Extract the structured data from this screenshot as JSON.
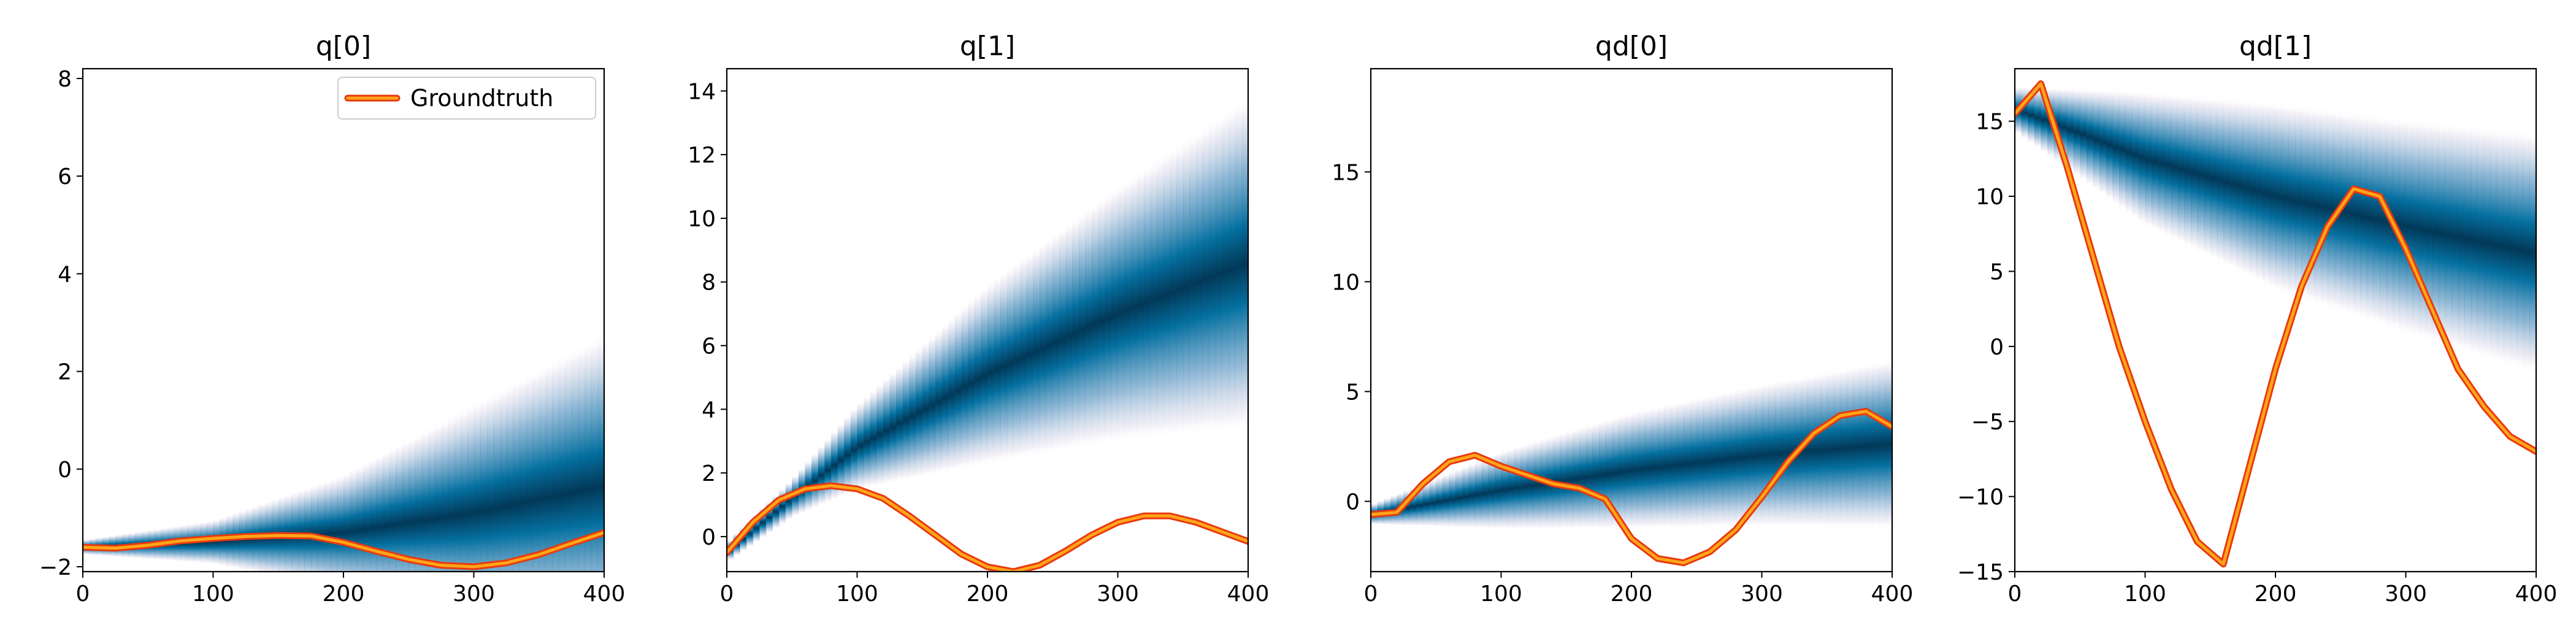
{
  "figure": {
    "legend": {
      "label": "Groundtruth",
      "placement": "upper right"
    },
    "colors": {
      "density_low": "#ffffff",
      "density_mid_low": "#e8e4f0",
      "density_mid": "#78a8cc",
      "density_high": "#0570a0",
      "density_peak": "#023858",
      "truth_edge": "#e8390e",
      "truth_fill": "#ffa51a"
    }
  },
  "chart_data": [
    {
      "type": "heatmap",
      "title": "q[0]",
      "xlim": [
        0,
        400
      ],
      "ylim": [
        -2.1,
        8.2
      ],
      "xticks": [
        0,
        100,
        200,
        300,
        400
      ],
      "yticks": [
        -2,
        0,
        2,
        4,
        6,
        8
      ],
      "legend": true,
      "density": {
        "mean": [
          [
            0,
            -1.6
          ],
          [
            100,
            -1.5
          ],
          [
            200,
            -1.3
          ],
          [
            300,
            -0.9
          ],
          [
            400,
            -0.35
          ]
        ],
        "sd": [
          [
            0,
            0.05
          ],
          [
            100,
            0.15
          ],
          [
            200,
            0.4
          ],
          [
            300,
            0.75
          ],
          [
            400,
            1.05
          ]
        ]
      },
      "groundtruth": {
        "x": [
          0,
          25,
          50,
          75,
          100,
          125,
          150,
          175,
          200,
          225,
          250,
          275,
          300,
          325,
          350,
          375,
          400
        ],
        "y": [
          -1.6,
          -1.62,
          -1.56,
          -1.47,
          -1.42,
          -1.38,
          -1.36,
          -1.37,
          -1.5,
          -1.68,
          -1.85,
          -1.97,
          -2.0,
          -1.92,
          -1.75,
          -1.52,
          -1.3
        ]
      }
    },
    {
      "type": "heatmap",
      "title": "q[1]",
      "xlim": [
        0,
        400
      ],
      "ylim": [
        -1.1,
        14.7
      ],
      "xticks": [
        0,
        100,
        200,
        300,
        400
      ],
      "yticks": [
        0,
        2,
        4,
        6,
        8,
        10,
        12,
        14
      ],
      "legend": false,
      "density": {
        "mean": [
          [
            0,
            -0.5
          ],
          [
            50,
            1.2
          ],
          [
            100,
            2.8
          ],
          [
            200,
            5.1
          ],
          [
            300,
            7.0
          ],
          [
            400,
            8.6
          ]
        ],
        "sd": [
          [
            0,
            0.1
          ],
          [
            50,
            0.2
          ],
          [
            100,
            0.45
          ],
          [
            200,
            0.95
          ],
          [
            300,
            1.35
          ],
          [
            400,
            1.75
          ]
        ]
      },
      "groundtruth": {
        "x": [
          0,
          20,
          40,
          60,
          80,
          100,
          120,
          140,
          160,
          180,
          200,
          220,
          240,
          260,
          280,
          300,
          320,
          340,
          360,
          380,
          400
        ],
        "y": [
          -0.5,
          0.45,
          1.15,
          1.5,
          1.6,
          1.5,
          1.2,
          0.65,
          0.05,
          -0.55,
          -0.95,
          -1.1,
          -0.9,
          -0.45,
          0.05,
          0.45,
          0.65,
          0.65,
          0.45,
          0.15,
          -0.15
        ]
      }
    },
    {
      "type": "heatmap",
      "title": "qd[0]",
      "xlim": [
        0,
        400
      ],
      "ylim": [
        -3.2,
        19.7
      ],
      "xticks": [
        0,
        100,
        200,
        300,
        400
      ],
      "yticks": [
        0,
        5,
        10,
        15
      ],
      "legend": false,
      "density": {
        "mean": [
          [
            0,
            -0.6
          ],
          [
            100,
            0.5
          ],
          [
            200,
            1.4
          ],
          [
            300,
            2.1
          ],
          [
            400,
            2.6
          ]
        ],
        "sd": [
          [
            0,
            0.15
          ],
          [
            100,
            0.6
          ],
          [
            200,
            0.9
          ],
          [
            300,
            1.1
          ],
          [
            400,
            1.3
          ]
        ]
      },
      "groundtruth": {
        "x": [
          0,
          20,
          40,
          60,
          80,
          100,
          120,
          140,
          160,
          180,
          200,
          220,
          240,
          260,
          280,
          300,
          320,
          340,
          360,
          380,
          400
        ],
        "y": [
          -0.6,
          -0.5,
          0.8,
          1.8,
          2.1,
          1.6,
          1.2,
          0.8,
          0.6,
          0.1,
          -1.7,
          -2.6,
          -2.8,
          -2.3,
          -1.3,
          0.2,
          1.8,
          3.1,
          3.9,
          4.1,
          3.4
        ]
      }
    },
    {
      "type": "heatmap",
      "title": "qd[1]",
      "xlim": [
        0,
        400
      ],
      "ylim": [
        -15,
        18.5
      ],
      "xticks": [
        0,
        100,
        200,
        300,
        400
      ],
      "yticks": [
        -15,
        -10,
        -5,
        0,
        5,
        10,
        15
      ],
      "legend": false,
      "density": {
        "mean": [
          [
            0,
            15.8
          ],
          [
            50,
            14.2
          ],
          [
            100,
            12.5
          ],
          [
            200,
            10.0
          ],
          [
            300,
            8.0
          ],
          [
            400,
            6.2
          ]
        ],
        "sd": [
          [
            0,
            0.5
          ],
          [
            50,
            1.0
          ],
          [
            100,
            1.5
          ],
          [
            200,
            2.1
          ],
          [
            300,
            2.4
          ],
          [
            400,
            2.7
          ]
        ]
      },
      "groundtruth": {
        "x": [
          0,
          20,
          40,
          60,
          80,
          100,
          120,
          140,
          160,
          180,
          200,
          220,
          240,
          260,
          280,
          300,
          320,
          340,
          360,
          380,
          400
        ],
        "y": [
          15.5,
          17.5,
          12.0,
          6.0,
          0.0,
          -5.0,
          -9.5,
          -13.0,
          -14.5,
          -8.0,
          -1.5,
          4.0,
          8.0,
          10.5,
          10.0,
          6.5,
          2.5,
          -1.5,
          -4.0,
          -6.0,
          -7.0
        ]
      }
    }
  ]
}
